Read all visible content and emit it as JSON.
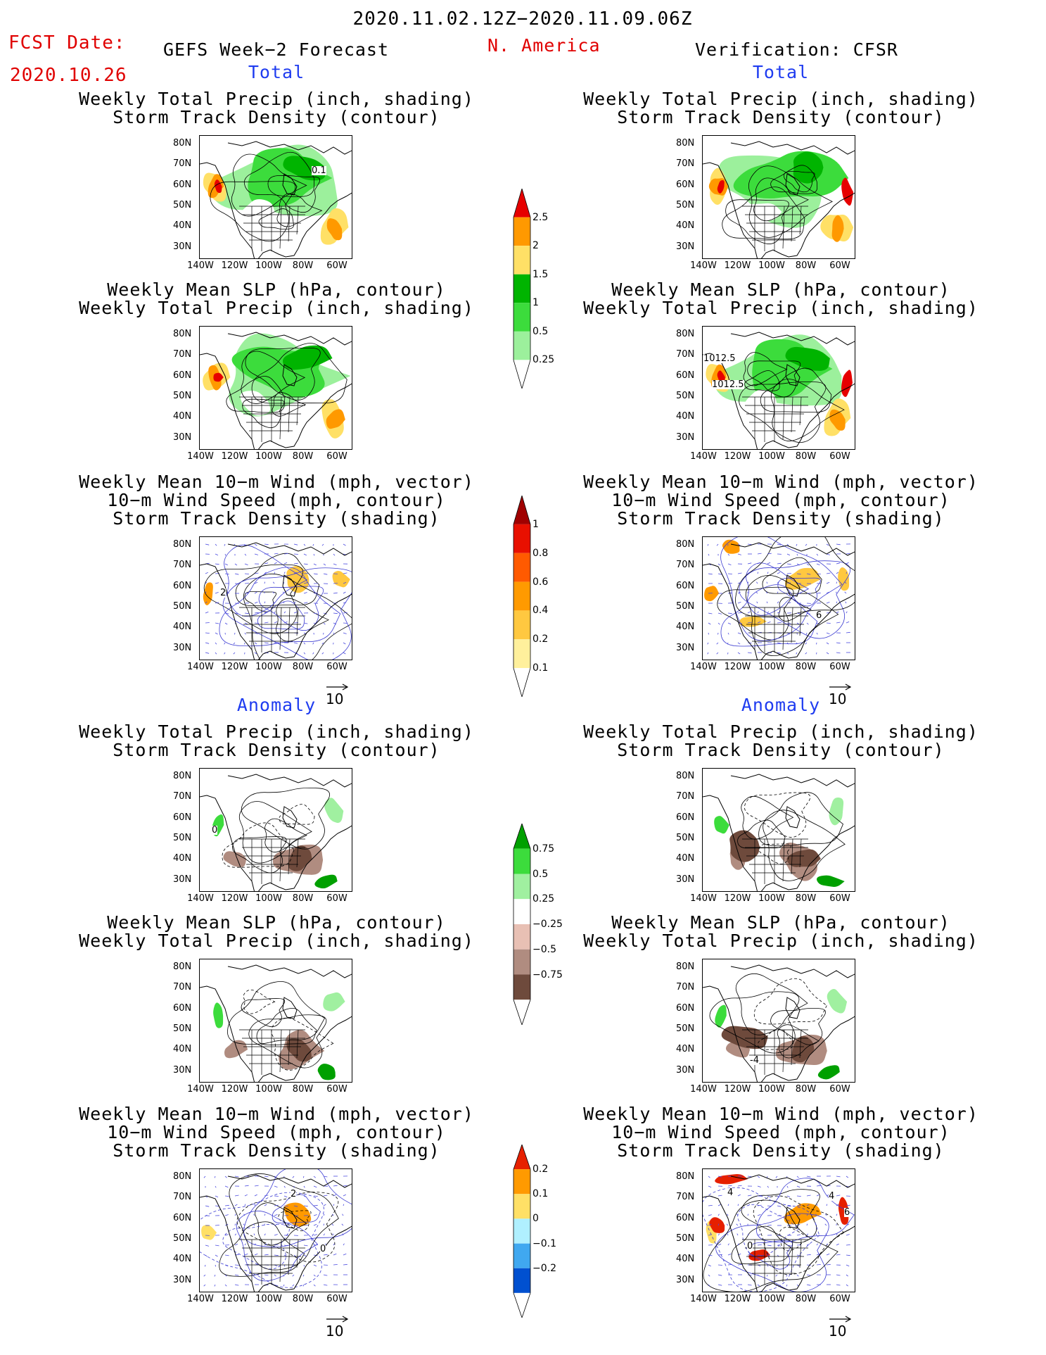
{
  "header": {
    "period": "2020.11.02.12Z−2020.11.09.06Z",
    "fcst_label": "FCST Date:",
    "fcst_date": "2020.10.26",
    "left_title": "GEFS Week−2 Forecast",
    "region": "N. America",
    "right_title": "Verification: CFSR"
  },
  "sections": {
    "total": "Total",
    "anomaly": "Anomaly"
  },
  "titles": {
    "precip_storm": [
      "Weekly Total Precip (inch, shading)",
      "Storm Track Density (contour)"
    ],
    "slp_precip": [
      "Weekly Mean SLP (hPa, contour)",
      "Weekly Total Precip (inch, shading)"
    ],
    "wind_storm": [
      "Weekly Mean 10−m Wind (mph, vector)",
      "10−m Wind Speed (mph, contour)",
      "Storm Track Density (shading)"
    ]
  },
  "axes": {
    "lat_labels": [
      "80N",
      "70N",
      "60N",
      "50N",
      "40N",
      "30N"
    ],
    "lon_labels": [
      "140W",
      "120W",
      "100W",
      "80W",
      "60W"
    ]
  },
  "vector_ref": "10",
  "contour_labels": {
    "fc_total_precip": "0.1",
    "ver_total_slp_a": "1012.5",
    "ver_total_slp_b": "1012.5",
    "fc_total_wind": "2",
    "ver_total_wind": "6",
    "fc_anom_precip": "0",
    "fc_anom_wind_a": "2",
    "fc_anom_wind_b": "0",
    "ver_anom_slp": "-4",
    "ver_anom_wind_a": "4",
    "ver_anom_wind_b": "0",
    "ver_anom_wind_c": "4",
    "ver_anom_wind_d": "6"
  },
  "colorbars": {
    "total_precip": {
      "labels": [
        "2.5",
        "2",
        "1.5",
        "1",
        "0.5",
        "0.25"
      ],
      "colors": [
        "#e60000",
        "#ff9900",
        "#ffe066",
        "#00b400",
        "#3cdc3c",
        "#9cf09c"
      ]
    },
    "storm_density": {
      "labels": [
        "1",
        "0.8",
        "0.6",
        "0.4",
        "0.2",
        "0.1"
      ],
      "colors": [
        "#a00000",
        "#e81000",
        "#ff5a00",
        "#ff9a00",
        "#ffc840",
        "#fff09c"
      ]
    },
    "anom_precip": {
      "labels": [
        "0.75",
        "0.5",
        "0.25",
        "−0.25",
        "−0.5",
        "−0.75"
      ],
      "colors": [
        "#00a000",
        "#3cdc3c",
        "#a0f0a0",
        "#ffffff",
        "#e8c0b4",
        "#b08c80",
        "#6e4a3c"
      ]
    },
    "anom_density": {
      "labels": [
        "0.2",
        "0.1",
        "0",
        "−0.1",
        "−0.2"
      ],
      "colors": [
        "#e62000",
        "#ff9a00",
        "#ffe066",
        "#b0f0ff",
        "#40a8f0",
        "#0050d0"
      ]
    }
  },
  "colors": {
    "title_red": "#e00000",
    "section_blue": "#1f3cf0"
  }
}
